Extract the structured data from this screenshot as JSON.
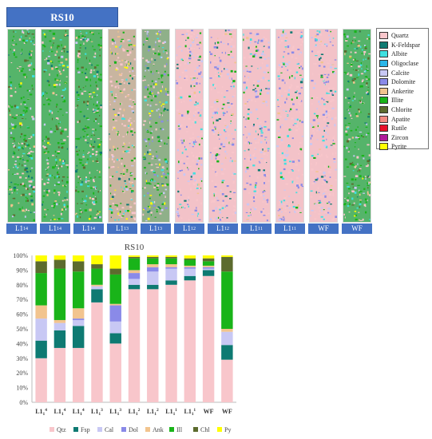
{
  "panel_title": "RS10",
  "mineral_legend": [
    {
      "name": "Quartz",
      "color": "#f8c6cb"
    },
    {
      "name": "K-Feldspar",
      "color": "#0e7a72"
    },
    {
      "name": "Albite",
      "color": "#3fe0e0"
    },
    {
      "name": "Oligoclase",
      "color": "#29b6e8"
    },
    {
      "name": "Calcite",
      "color": "#c8c8f4"
    },
    {
      "name": "Dolomite",
      "color": "#8a8ae8"
    },
    {
      "name": "Ankerite",
      "color": "#f2c48e"
    },
    {
      "name": "Illite",
      "color": "#19b419"
    },
    {
      "name": "Chlorite",
      "color": "#5c6b2e"
    },
    {
      "name": "Apatite",
      "color": "#f28b82"
    },
    {
      "name": "Rutile",
      "color": "#e8102a"
    },
    {
      "name": "Zircon",
      "color": "#b01a9a"
    },
    {
      "name": "Pyrite",
      "color": "#ffff00"
    }
  ],
  "strips": [
    {
      "base": "L1",
      "sub": "1",
      "sup": "4",
      "tone": "green"
    },
    {
      "base": "L1",
      "sub": "1",
      "sup": "4",
      "tone": "green"
    },
    {
      "base": "L1",
      "sub": "1",
      "sup": "4",
      "tone": "green"
    },
    {
      "base": "L1",
      "sub": "1",
      "sup": "3",
      "tone": "mixed"
    },
    {
      "base": "L1",
      "sub": "1",
      "sup": "3",
      "tone": "mixed-green"
    },
    {
      "base": "L1",
      "sub": "1",
      "sup": "2",
      "tone": "pink"
    },
    {
      "base": "L1",
      "sub": "1",
      "sup": "2",
      "tone": "pink"
    },
    {
      "base": "L1",
      "sub": "1",
      "sup": "1",
      "tone": "pink"
    },
    {
      "base": "L1",
      "sub": "1",
      "sup": "1",
      "tone": "pink"
    },
    {
      "base": "WF",
      "sub": "",
      "sup": "",
      "tone": "pink"
    },
    {
      "base": "WF",
      "sub": "",
      "sup": "",
      "tone": "green"
    }
  ],
  "chart_data": {
    "type": "bar",
    "stacked": true,
    "title": "RS10",
    "xlabel": "",
    "ylabel": "",
    "ylim": [
      0,
      100
    ],
    "y_ticks": [
      "0%",
      "10%",
      "20%",
      "30%",
      "40%",
      "50%",
      "60%",
      "70%",
      "80%",
      "90%",
      "100%"
    ],
    "grid": false,
    "legend_position": "bottom",
    "categories": [
      {
        "base": "L1",
        "sub": "1",
        "sup": "4"
      },
      {
        "base": "L1",
        "sub": "1",
        "sup": "4"
      },
      {
        "base": "L1",
        "sub": "1",
        "sup": "4"
      },
      {
        "base": "L1",
        "sub": "1",
        "sup": "3"
      },
      {
        "base": "L1",
        "sub": "1",
        "sup": "3"
      },
      {
        "base": "L1",
        "sub": "1",
        "sup": "2"
      },
      {
        "base": "L1",
        "sub": "1",
        "sup": "2"
      },
      {
        "base": "L1",
        "sub": "1",
        "sup": "1"
      },
      {
        "base": "L1",
        "sub": "1",
        "sup": "1"
      },
      {
        "base": "WF",
        "sub": "",
        "sup": ""
      },
      {
        "base": "WF",
        "sub": "",
        "sup": ""
      }
    ],
    "series": [
      {
        "name": "Qtz",
        "color": "#f8c6cb",
        "values": [
          30,
          37,
          37,
          68,
          40,
          77,
          77,
          80,
          83,
          86,
          29
        ]
      },
      {
        "name": "Fsp",
        "color": "#0e7a72",
        "values": [
          12,
          12,
          15,
          9,
          7,
          3,
          3,
          3,
          3,
          4,
          10
        ]
      },
      {
        "name": "Cal",
        "color": "#c8c8f4",
        "values": [
          15,
          5,
          4,
          2,
          8,
          4,
          9,
          8,
          5,
          1,
          9
        ]
      },
      {
        "name": "Dol",
        "color": "#8a8ae8",
        "values": [
          0,
          0,
          1,
          0,
          11,
          4,
          3,
          1,
          1,
          1,
          0
        ]
      },
      {
        "name": "Ank",
        "color": "#f2c48e",
        "values": [
          9,
          2,
          7,
          1,
          1,
          2,
          2,
          2,
          1,
          1,
          2
        ]
      },
      {
        "name": "Ill",
        "color": "#19b419",
        "values": [
          22,
          35,
          25,
          11,
          20,
          8,
          4,
          4,
          4,
          3,
          39
        ]
      },
      {
        "name": "Chl",
        "color": "#5c6b2e",
        "values": [
          8,
          6,
          7,
          3,
          4,
          1,
          1,
          1,
          1,
          2,
          10
        ]
      },
      {
        "name": "Py",
        "color": "#ffff00",
        "values": [
          4,
          3,
          4,
          6,
          9,
          1,
          1,
          1,
          2,
          2,
          1
        ]
      }
    ]
  }
}
